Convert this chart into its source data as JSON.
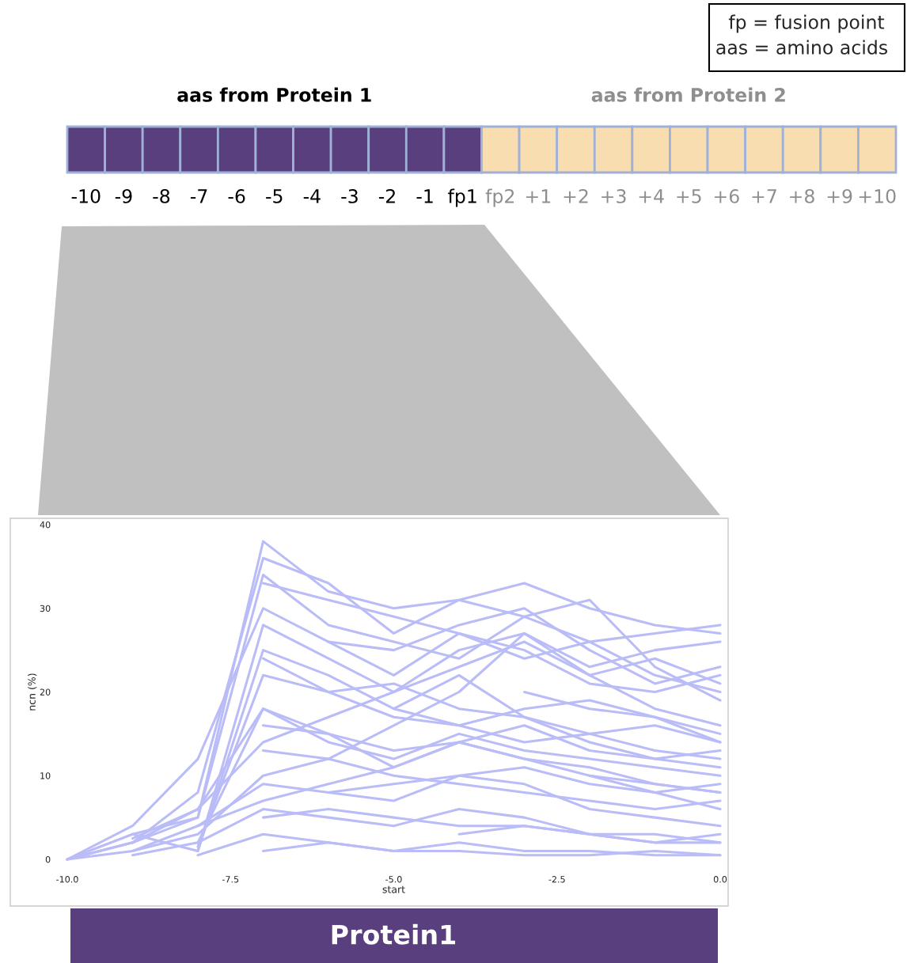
{
  "chart_data": [
    {
      "type": "other",
      "categories": [
        "-10",
        "-9",
        "-8",
        "-7",
        "-6",
        "-5",
        "-4",
        "-3",
        "-2",
        "-1",
        "fp1",
        "fp2",
        "+1",
        "+2",
        "+3",
        "+4",
        "+5",
        "+6",
        "+7",
        "+8",
        "+9",
        "+10"
      ],
      "colors": [
        "#5a3f7f",
        "#5a3f7f",
        "#5a3f7f",
        "#5a3f7f",
        "#5a3f7f",
        "#5a3f7f",
        "#5a3f7f",
        "#5a3f7f",
        "#5a3f7f",
        "#5a3f7f",
        "#5a3f7f",
        "#f8ddb0",
        "#f8ddb0",
        "#f8ddb0",
        "#f8ddb0",
        "#f8ddb0",
        "#f8ddb0",
        "#f8ddb0",
        "#f8ddb0",
        "#f8ddb0",
        "#f8ddb0",
        "#f8ddb0"
      ],
      "annotations": [
        "fp = fusion point",
        "aas = amino acids",
        "aas from Protein 1",
        "aas from Protein 2",
        "Protein1"
      ]
    },
    {
      "type": "line",
      "xlabel": "start",
      "ylabel": "ncn (%)",
      "xlim": [
        -10,
        0
      ],
      "ylim": [
        0,
        40
      ],
      "xticks": [
        {
          "value": -10,
          "label": "-10.0"
        },
        {
          "value": -7.5,
          "label": "-7.5"
        },
        {
          "value": -5,
          "label": "-5.0"
        },
        {
          "value": -2.5,
          "label": "-2.5"
        },
        {
          "value": 0,
          "label": "0.0"
        }
      ],
      "yticks": [
        0,
        10,
        20,
        30,
        40
      ],
      "grid": false,
      "legend": false,
      "marker": "none",
      "line_style": "solid",
      "series": [
        {
          "color": "#b9bcf7",
          "x": [
            -10,
            -9,
            -8,
            -7,
            -6,
            -5,
            -4,
            -3,
            -2,
            -1,
            0
          ],
          "values": [
            0,
            3,
            5,
            38,
            32,
            30,
            31,
            33,
            30,
            28,
            27
          ]
        },
        {
          "color": "#b9bcf7",
          "x": [
            -10,
            -9,
            -8,
            -7,
            -6,
            -5,
            -4,
            -3,
            -2,
            -1,
            0
          ],
          "values": [
            0,
            2,
            8,
            36,
            33,
            27,
            31,
            29,
            26,
            27,
            28
          ]
        },
        {
          "color": "#b9bcf7",
          "x": [
            -10,
            -9,
            -8,
            -7,
            -6,
            -5,
            -4,
            -3,
            -2,
            -1,
            0
          ],
          "values": [
            0,
            4,
            12,
            30,
            26,
            22,
            27,
            25,
            21,
            20,
            22
          ]
        },
        {
          "color": "#b9bcf7",
          "x": [
            -10,
            -9,
            -8,
            -7,
            -6,
            -5,
            -4,
            -3,
            -2,
            -1,
            0
          ],
          "values": [
            0,
            1,
            3,
            10,
            12,
            16,
            20,
            27,
            22,
            24,
            21
          ]
        },
        {
          "color": "#b9bcf7",
          "x": [
            -10,
            -9,
            -8,
            -7,
            -6,
            -5,
            -4,
            -3,
            -2,
            -1,
            0
          ],
          "values": [
            0,
            2,
            6,
            18,
            15,
            11,
            14,
            12,
            10,
            8,
            9
          ]
        },
        {
          "color": "#b9bcf7",
          "x": [
            -9,
            -8,
            -7,
            -6,
            -5,
            -4,
            -3,
            -2,
            -1,
            0
          ],
          "values": [
            3,
            1,
            25,
            22,
            18,
            22,
            17,
            15,
            16,
            14
          ]
        },
        {
          "color": "#b9bcf7",
          "x": [
            -9,
            -8,
            -7,
            -6,
            -5,
            -4,
            -3,
            -2,
            -1,
            0
          ],
          "values": [
            2,
            5,
            34,
            28,
            26,
            24,
            29,
            31,
            23,
            19
          ]
        },
        {
          "color": "#b9bcf7",
          "x": [
            -9,
            -8,
            -7,
            -6,
            -5,
            -4,
            -3,
            -2,
            -1,
            0
          ],
          "values": [
            1,
            4,
            9,
            8,
            7,
            10,
            9,
            6,
            5,
            4
          ]
        },
        {
          "color": "#b9bcf7",
          "x": [
            -9,
            -8,
            -7,
            -6,
            -5,
            -4,
            -3,
            -2,
            -1,
            0
          ],
          "values": [
            0.5,
            2,
            6,
            5,
            4,
            6,
            5,
            3,
            2,
            2
          ]
        },
        {
          "color": "#b9bcf7",
          "x": [
            -9,
            -8,
            -7,
            -6,
            -5,
            -4,
            -3,
            -2,
            -1,
            0
          ],
          "values": [
            2.5,
            6,
            14,
            17,
            20,
            23,
            26,
            22,
            18,
            16
          ]
        },
        {
          "color": "#b9bcf7",
          "x": [
            -8,
            -7,
            -6,
            -5,
            -4,
            -3,
            -2,
            -1,
            0
          ],
          "values": [
            1,
            28,
            24,
            20,
            25,
            27,
            23,
            25,
            26
          ]
        },
        {
          "color": "#b9bcf7",
          "x": [
            -8,
            -7,
            -6,
            -5,
            -4,
            -3,
            -2,
            -1,
            0
          ],
          "values": [
            2,
            18,
            14,
            12,
            15,
            13,
            12,
            11,
            10
          ]
        },
        {
          "color": "#b9bcf7",
          "x": [
            -8,
            -7,
            -6,
            -5,
            -4,
            -3,
            -2,
            -1,
            0
          ],
          "values": [
            0.5,
            3,
            2,
            1,
            2,
            1,
            1,
            0.5,
            0.5
          ]
        },
        {
          "color": "#b9bcf7",
          "x": [
            -8,
            -7,
            -6,
            -5,
            -4,
            -3,
            -2,
            -1,
            0
          ],
          "values": [
            4,
            7,
            9,
            11,
            14,
            16,
            13,
            12,
            11
          ]
        },
        {
          "color": "#b9bcf7",
          "x": [
            -8,
            -7,
            -6,
            -5,
            -4,
            -3,
            -2,
            -1,
            0
          ],
          "values": [
            1.5,
            22,
            20,
            17,
            16,
            18,
            19,
            17,
            15
          ]
        },
        {
          "color": "#b9bcf7",
          "x": [
            -7,
            -6,
            -5,
            -4,
            -3,
            -2,
            -1,
            0
          ],
          "values": [
            33,
            31,
            29,
            27,
            24,
            26,
            22,
            20
          ]
        },
        {
          "color": "#b9bcf7",
          "x": [
            -7,
            -6,
            -5,
            -4,
            -3,
            -2,
            -1,
            0
          ],
          "values": [
            24,
            20,
            21,
            18,
            17,
            14,
            12,
            13
          ]
        },
        {
          "color": "#b9bcf7",
          "x": [
            -7,
            -6,
            -5,
            -4,
            -3,
            -2,
            -1,
            0
          ],
          "values": [
            13,
            12,
            10,
            9,
            8,
            7,
            6,
            7
          ]
        },
        {
          "color": "#b9bcf7",
          "x": [
            -7,
            -6,
            -5,
            -4,
            -3,
            -2,
            -1,
            0
          ],
          "values": [
            5,
            6,
            5,
            4,
            4,
            3,
            3,
            2
          ]
        },
        {
          "color": "#b9bcf7",
          "x": [
            -7,
            -6,
            -5,
            -4,
            -3,
            -2,
            -1,
            0
          ],
          "values": [
            1,
            2,
            1,
            1,
            0.5,
            0.5,
            1,
            0.5
          ]
        },
        {
          "color": "#b9bcf7",
          "x": [
            -7,
            -6,
            -5,
            -4,
            -3,
            -2,
            -1,
            0
          ],
          "values": [
            16,
            15,
            13,
            14,
            12,
            11,
            9,
            8
          ]
        },
        {
          "color": "#b9bcf7",
          "x": [
            -6,
            -5,
            -4,
            -3,
            -2,
            -1,
            0
          ],
          "values": [
            8,
            9,
            10,
            11,
            9,
            8,
            6
          ]
        },
        {
          "color": "#b9bcf7",
          "x": [
            -6,
            -5,
            -4,
            -3,
            -2,
            -1,
            0
          ],
          "values": [
            26,
            25,
            28,
            30,
            25,
            21,
            23
          ]
        },
        {
          "color": "#b9bcf7",
          "x": [
            -5,
            -4,
            -3,
            -2,
            -1,
            0
          ],
          "values": [
            18,
            16,
            14,
            15,
            13,
            12
          ]
        },
        {
          "color": "#b9bcf7",
          "x": [
            -4,
            -3,
            -2,
            -1,
            0
          ],
          "values": [
            3,
            4,
            3,
            2,
            3
          ]
        },
        {
          "color": "#b9bcf7",
          "x": [
            -3,
            -2,
            -1,
            0
          ],
          "values": [
            20,
            18,
            17,
            14
          ]
        },
        {
          "color": "#b9bcf7",
          "x": [
            -2,
            -1,
            0
          ],
          "values": [
            10,
            9,
            8
          ]
        }
      ]
    }
  ]
}
